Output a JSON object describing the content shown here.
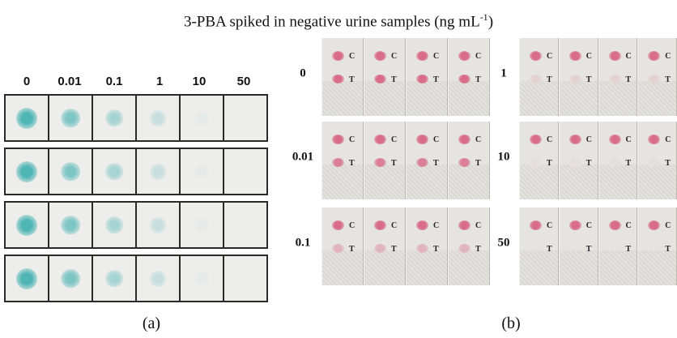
{
  "title": {
    "text": "3-PBA spiked in negative urine samples (ng mL",
    "superscript": "-1",
    "close": ")"
  },
  "panel_a": {
    "caption": "(a)",
    "concentrations": [
      "0",
      "0.01",
      "0.1",
      "1",
      "10",
      "50"
    ],
    "rows": 4,
    "spot_color": "#4fb5b5",
    "spot_intensity": [
      1.0,
      0.7,
      0.45,
      0.25,
      0.05,
      0.0
    ]
  },
  "panel_b": {
    "caption": "(b)",
    "left_rows": [
      "0",
      "0.01",
      "0.1"
    ],
    "right_rows": [
      "1",
      "10",
      "50"
    ],
    "control_label": "C",
    "test_label": "T",
    "line_color": "#d86c8a",
    "test_intensity_left": [
      1.0,
      0.85,
      0.4
    ],
    "test_intensity_right": [
      0.15,
      0.05,
      0.0
    ]
  }
}
